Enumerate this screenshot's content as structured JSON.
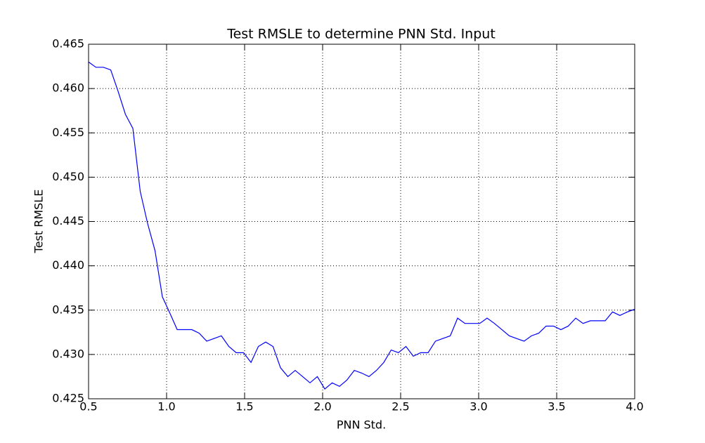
{
  "chart_data": {
    "type": "line",
    "title": "Test RMSLE to determine PNN Std. Input",
    "xlabel": "PNN Std.",
    "ylabel": "Test RMSLE",
    "x": [
      0.5,
      0.547,
      0.595,
      0.642,
      0.689,
      0.736,
      0.784,
      0.831,
      0.878,
      0.926,
      0.973,
      1.02,
      1.068,
      1.115,
      1.162,
      1.209,
      1.257,
      1.304,
      1.351,
      1.399,
      1.446,
      1.493,
      1.541,
      1.588,
      1.635,
      1.682,
      1.73,
      1.777,
      1.824,
      1.872,
      1.919,
      1.966,
      2.014,
      2.061,
      2.108,
      2.155,
      2.203,
      2.25,
      2.297,
      2.345,
      2.392,
      2.439,
      2.486,
      2.534,
      2.581,
      2.628,
      2.676,
      2.723,
      2.77,
      2.818,
      2.865,
      2.912,
      2.959,
      3.007,
      3.054,
      3.101,
      3.149,
      3.196,
      3.243,
      3.291,
      3.338,
      3.385,
      3.432,
      3.48,
      3.527,
      3.574,
      3.622,
      3.669,
      3.716,
      3.764,
      3.811,
      3.858,
      3.905,
      3.953,
      4.0
    ],
    "series": [
      {
        "name": "Test RMSLE",
        "color": "#0000ff",
        "values": [
          0.463,
          0.4624,
          0.4624,
          0.4621,
          0.4597,
          0.4571,
          0.4555,
          0.4484,
          0.4448,
          0.4417,
          0.4365,
          0.4347,
          0.4328,
          0.4328,
          0.4328,
          0.4324,
          0.4315,
          0.4318,
          0.4321,
          0.4309,
          0.4302,
          0.4302,
          0.4291,
          0.4309,
          0.4314,
          0.4309,
          0.4285,
          0.4275,
          0.4282,
          0.4275,
          0.4268,
          0.4275,
          0.4261,
          0.4268,
          0.4264,
          0.4271,
          0.4282,
          0.4279,
          0.4275,
          0.4282,
          0.4291,
          0.4305,
          0.4302,
          0.4309,
          0.4298,
          0.4302,
          0.4302,
          0.4315,
          0.4318,
          0.4321,
          0.4341,
          0.4335,
          0.4335,
          0.4335,
          0.4341,
          0.4335,
          0.4328,
          0.4321,
          0.4318,
          0.4315,
          0.4321,
          0.4324,
          0.4332,
          0.4332,
          0.4328,
          0.4332,
          0.4341,
          0.4335,
          0.4338,
          0.4338,
          0.4338,
          0.4348,
          0.4344,
          0.4348,
          0.4351
        ]
      }
    ],
    "xlim": [
      0.5,
      4.0
    ],
    "xticks": [
      0.5,
      {
        "value": 1,
        "label": "1.0"
      },
      1.5,
      {
        "value": 2,
        "label": "2.0"
      },
      2.5,
      {
        "value": 3,
        "label": "3.0"
      },
      3.5,
      {
        "value": 4,
        "label": "4.0"
      }
    ],
    "ylim": [
      0.425,
      0.465
    ],
    "yticks": [
      0.425,
      {
        "value": 0.43,
        "label": "0.430"
      },
      0.435,
      {
        "value": 0.44,
        "label": "0.440"
      },
      0.445,
      {
        "value": 0.45,
        "label": "0.450"
      },
      0.455,
      {
        "value": 0.46,
        "label": "0.460"
      },
      0.465
    ],
    "grid": true
  }
}
